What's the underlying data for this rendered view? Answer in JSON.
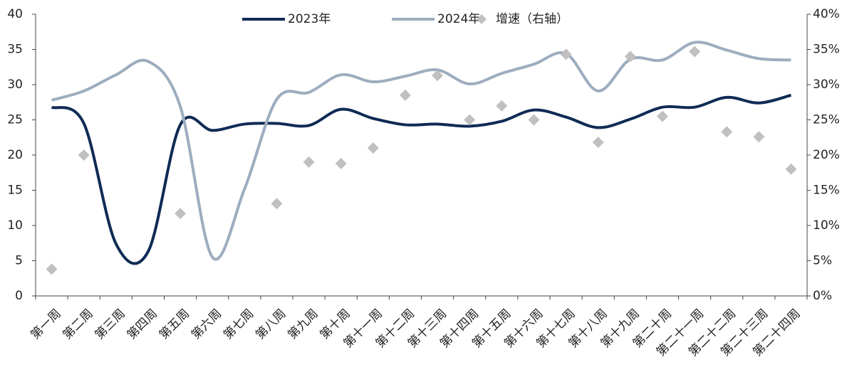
{
  "chart_data": {
    "type": "line",
    "categories": [
      "第一周",
      "第二周",
      "第三周",
      "第四周",
      "第五周",
      "第六周",
      "第七周",
      "第八周",
      "第九周",
      "第十周",
      "第十一周",
      "第十二周",
      "第十三周",
      "第十四周",
      "第十五周",
      "第十六周",
      "第十七周",
      "第十八周",
      "第十九周",
      "第二十周",
      "第二十一周",
      "第二十二周",
      "第二十三周",
      "第二十四周"
    ],
    "series": [
      {
        "name": "2023年",
        "color": "#0f2b55",
        "values": [
          26.8,
          24.5,
          7.4,
          6.3,
          24.3,
          23.5,
          24.4,
          24.5,
          24.2,
          26.5,
          25.2,
          24.3,
          24.4,
          24.1,
          24.8,
          26.4,
          25.4,
          23.9,
          25.1,
          26.8,
          26.8,
          28.2,
          27.4,
          28.5
        ]
      },
      {
        "name": "2024年",
        "color": "#9dadbf",
        "values": [
          27.8,
          29.1,
          31.4,
          33.3,
          26.9,
          5.5,
          15.2,
          27.9,
          28.9,
          31.4,
          30.4,
          31.2,
          32.1,
          30.1,
          31.6,
          32.9,
          34.4,
          29.1,
          33.6,
          33.5,
          36.0,
          34.9,
          33.7,
          33.5
        ]
      },
      {
        "name": "增速（右轴）",
        "color": "#c0c0c0",
        "axis": "y2",
        "marker": "diamond",
        "values": [
          3.8,
          20,
          null,
          null,
          11.7,
          null,
          null,
          13.1,
          19,
          18.8,
          21,
          28.5,
          31.3,
          25,
          27,
          25,
          34.3,
          21.8,
          34,
          25.5,
          34.7,
          23.3,
          22.6,
          18
        ]
      }
    ],
    "ylim": [
      0,
      40
    ],
    "yticks": [
      0,
      5,
      10,
      15,
      20,
      25,
      30,
      35,
      40
    ],
    "y2lim": [
      0,
      40
    ],
    "y2ticks": [
      {
        "value": 0,
        "label": "0%"
      },
      {
        "value": 5,
        "label": "5%"
      },
      {
        "value": 10,
        "label": "10%"
      },
      {
        "value": 15,
        "label": "15%"
      },
      {
        "value": 20,
        "label": "20%"
      },
      {
        "value": 25,
        "label": "25%"
      },
      {
        "value": 30,
        "label": "30%"
      },
      {
        "value": 35,
        "label": "35%"
      },
      {
        "value": 40,
        "label": "40%"
      }
    ],
    "legend": "top",
    "grid": false
  }
}
